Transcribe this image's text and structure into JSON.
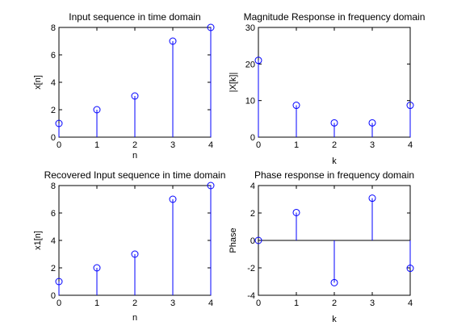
{
  "chart_data": [
    {
      "type": "stem",
      "title": "Input sequence in time domain",
      "xlabel": "n",
      "ylabel": "x[n]",
      "x": [
        0,
        1,
        2,
        3,
        4
      ],
      "y": [
        1,
        2,
        3,
        7,
        8
      ],
      "xlim": [
        0,
        4
      ],
      "ylim": [
        0,
        8
      ],
      "xticks": [
        0,
        1,
        2,
        3,
        4
      ],
      "yticks": [
        0,
        2,
        4,
        6,
        8
      ],
      "baseline": false,
      "color": "#0000ff"
    },
    {
      "type": "stem",
      "title": "Magnitude Response in frequency domain",
      "xlabel": "k",
      "ylabel": "|X[k]|",
      "x": [
        0,
        1,
        2,
        3,
        4
      ],
      "y": [
        21,
        8.7,
        3.9,
        3.9,
        8.7
      ],
      "xlim": [
        0,
        4
      ],
      "ylim": [
        0,
        30
      ],
      "xticks": [
        0,
        1,
        2,
        3,
        4
      ],
      "yticks": [
        0,
        10,
        20,
        30
      ],
      "baseline": false,
      "color": "#0000ff"
    },
    {
      "type": "stem",
      "title": "Recovered Input sequence in time domain",
      "xlabel": "n",
      "ylabel": "x1[n]",
      "x": [
        0,
        1,
        2,
        3,
        4
      ],
      "y": [
        1,
        2,
        3,
        7,
        8
      ],
      "xlim": [
        0,
        4
      ],
      "ylim": [
        0,
        8
      ],
      "xticks": [
        0,
        1,
        2,
        3,
        4
      ],
      "yticks": [
        0,
        2,
        4,
        6,
        8
      ],
      "baseline": false,
      "color": "#0000ff"
    },
    {
      "type": "stem",
      "title": "Phase response in frequency domain",
      "xlabel": "k",
      "ylabel": "Phase",
      "x": [
        0,
        1,
        2,
        3,
        4
      ],
      "y": [
        0,
        2.03,
        -3.08,
        3.08,
        -2.03
      ],
      "xlim": [
        0,
        4
      ],
      "ylim": [
        -4,
        4
      ],
      "xticks": [
        0,
        1,
        2,
        3,
        4
      ],
      "yticks": [
        -4,
        -2,
        0,
        2,
        4
      ],
      "baseline": true,
      "color": "#0000ff"
    }
  ]
}
